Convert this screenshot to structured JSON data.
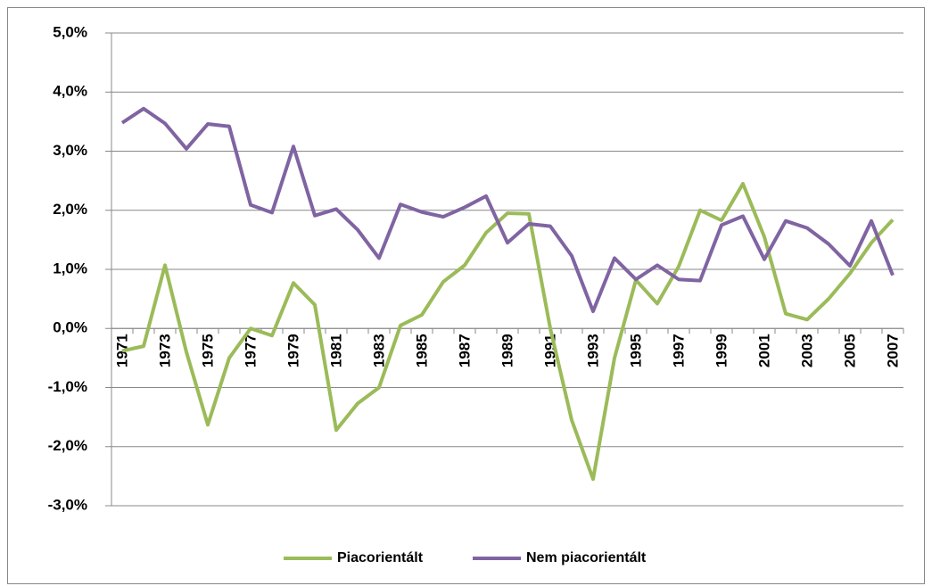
{
  "chart_data": {
    "type": "line",
    "categories": [
      "1971",
      null,
      "1973",
      null,
      "1975",
      null,
      "1977",
      null,
      "1979",
      null,
      "1981",
      null,
      "1983",
      null,
      "1985",
      null,
      "1987",
      null,
      "1989",
      null,
      "1991",
      null,
      "1993",
      null,
      "1995",
      null,
      "1997",
      null,
      "1999",
      null,
      "2001",
      null,
      "2003",
      null,
      "2005",
      null,
      "2007"
    ],
    "series": [
      {
        "name": "Piacorientált",
        "color": "#9bbb59",
        "values": [
          -0.38,
          -0.3,
          1.07,
          -0.4,
          -1.63,
          -0.5,
          0.0,
          -0.12,
          0.77,
          0.4,
          -1.72,
          -1.27,
          -1.0,
          0.05,
          0.23,
          0.79,
          1.07,
          1.62,
          1.95,
          1.94,
          0.0,
          -1.55,
          -2.55,
          -0.5,
          0.82,
          0.42,
          1.05,
          2.0,
          1.83,
          2.45,
          1.55,
          0.25,
          0.15,
          0.5,
          0.93,
          1.45,
          1.84
        ]
      },
      {
        "name": "Nem piacorientált",
        "color": "#8064a2",
        "values": [
          3.48,
          3.72,
          3.47,
          3.04,
          3.46,
          3.42,
          2.09,
          1.96,
          3.08,
          1.91,
          2.02,
          1.67,
          1.19,
          2.1,
          1.97,
          1.89,
          2.05,
          2.24,
          1.45,
          1.77,
          1.73,
          1.23,
          0.29,
          1.19,
          0.83,
          1.07,
          0.83,
          0.81,
          1.75,
          1.9,
          1.17,
          1.82,
          1.7,
          1.43,
          1.06,
          1.82,
          0.9
        ]
      }
    ],
    "ylim": [
      -3,
      5
    ],
    "yticks": [
      {
        "value": -3,
        "label": "-3,0%"
      },
      {
        "value": -2,
        "label": "-2,0%"
      },
      {
        "value": -1,
        "label": "-1,0%"
      },
      {
        "value": 0,
        "label": "0,0%"
      },
      {
        "value": 1,
        "label": "1,0%"
      },
      {
        "value": 2,
        "label": "2,0%"
      },
      {
        "value": 3,
        "label": "3,0%"
      },
      {
        "value": 4,
        "label": "4,0%"
      },
      {
        "value": 5,
        "label": "5,0%"
      }
    ],
    "grid": true,
    "legend": "bottom"
  }
}
